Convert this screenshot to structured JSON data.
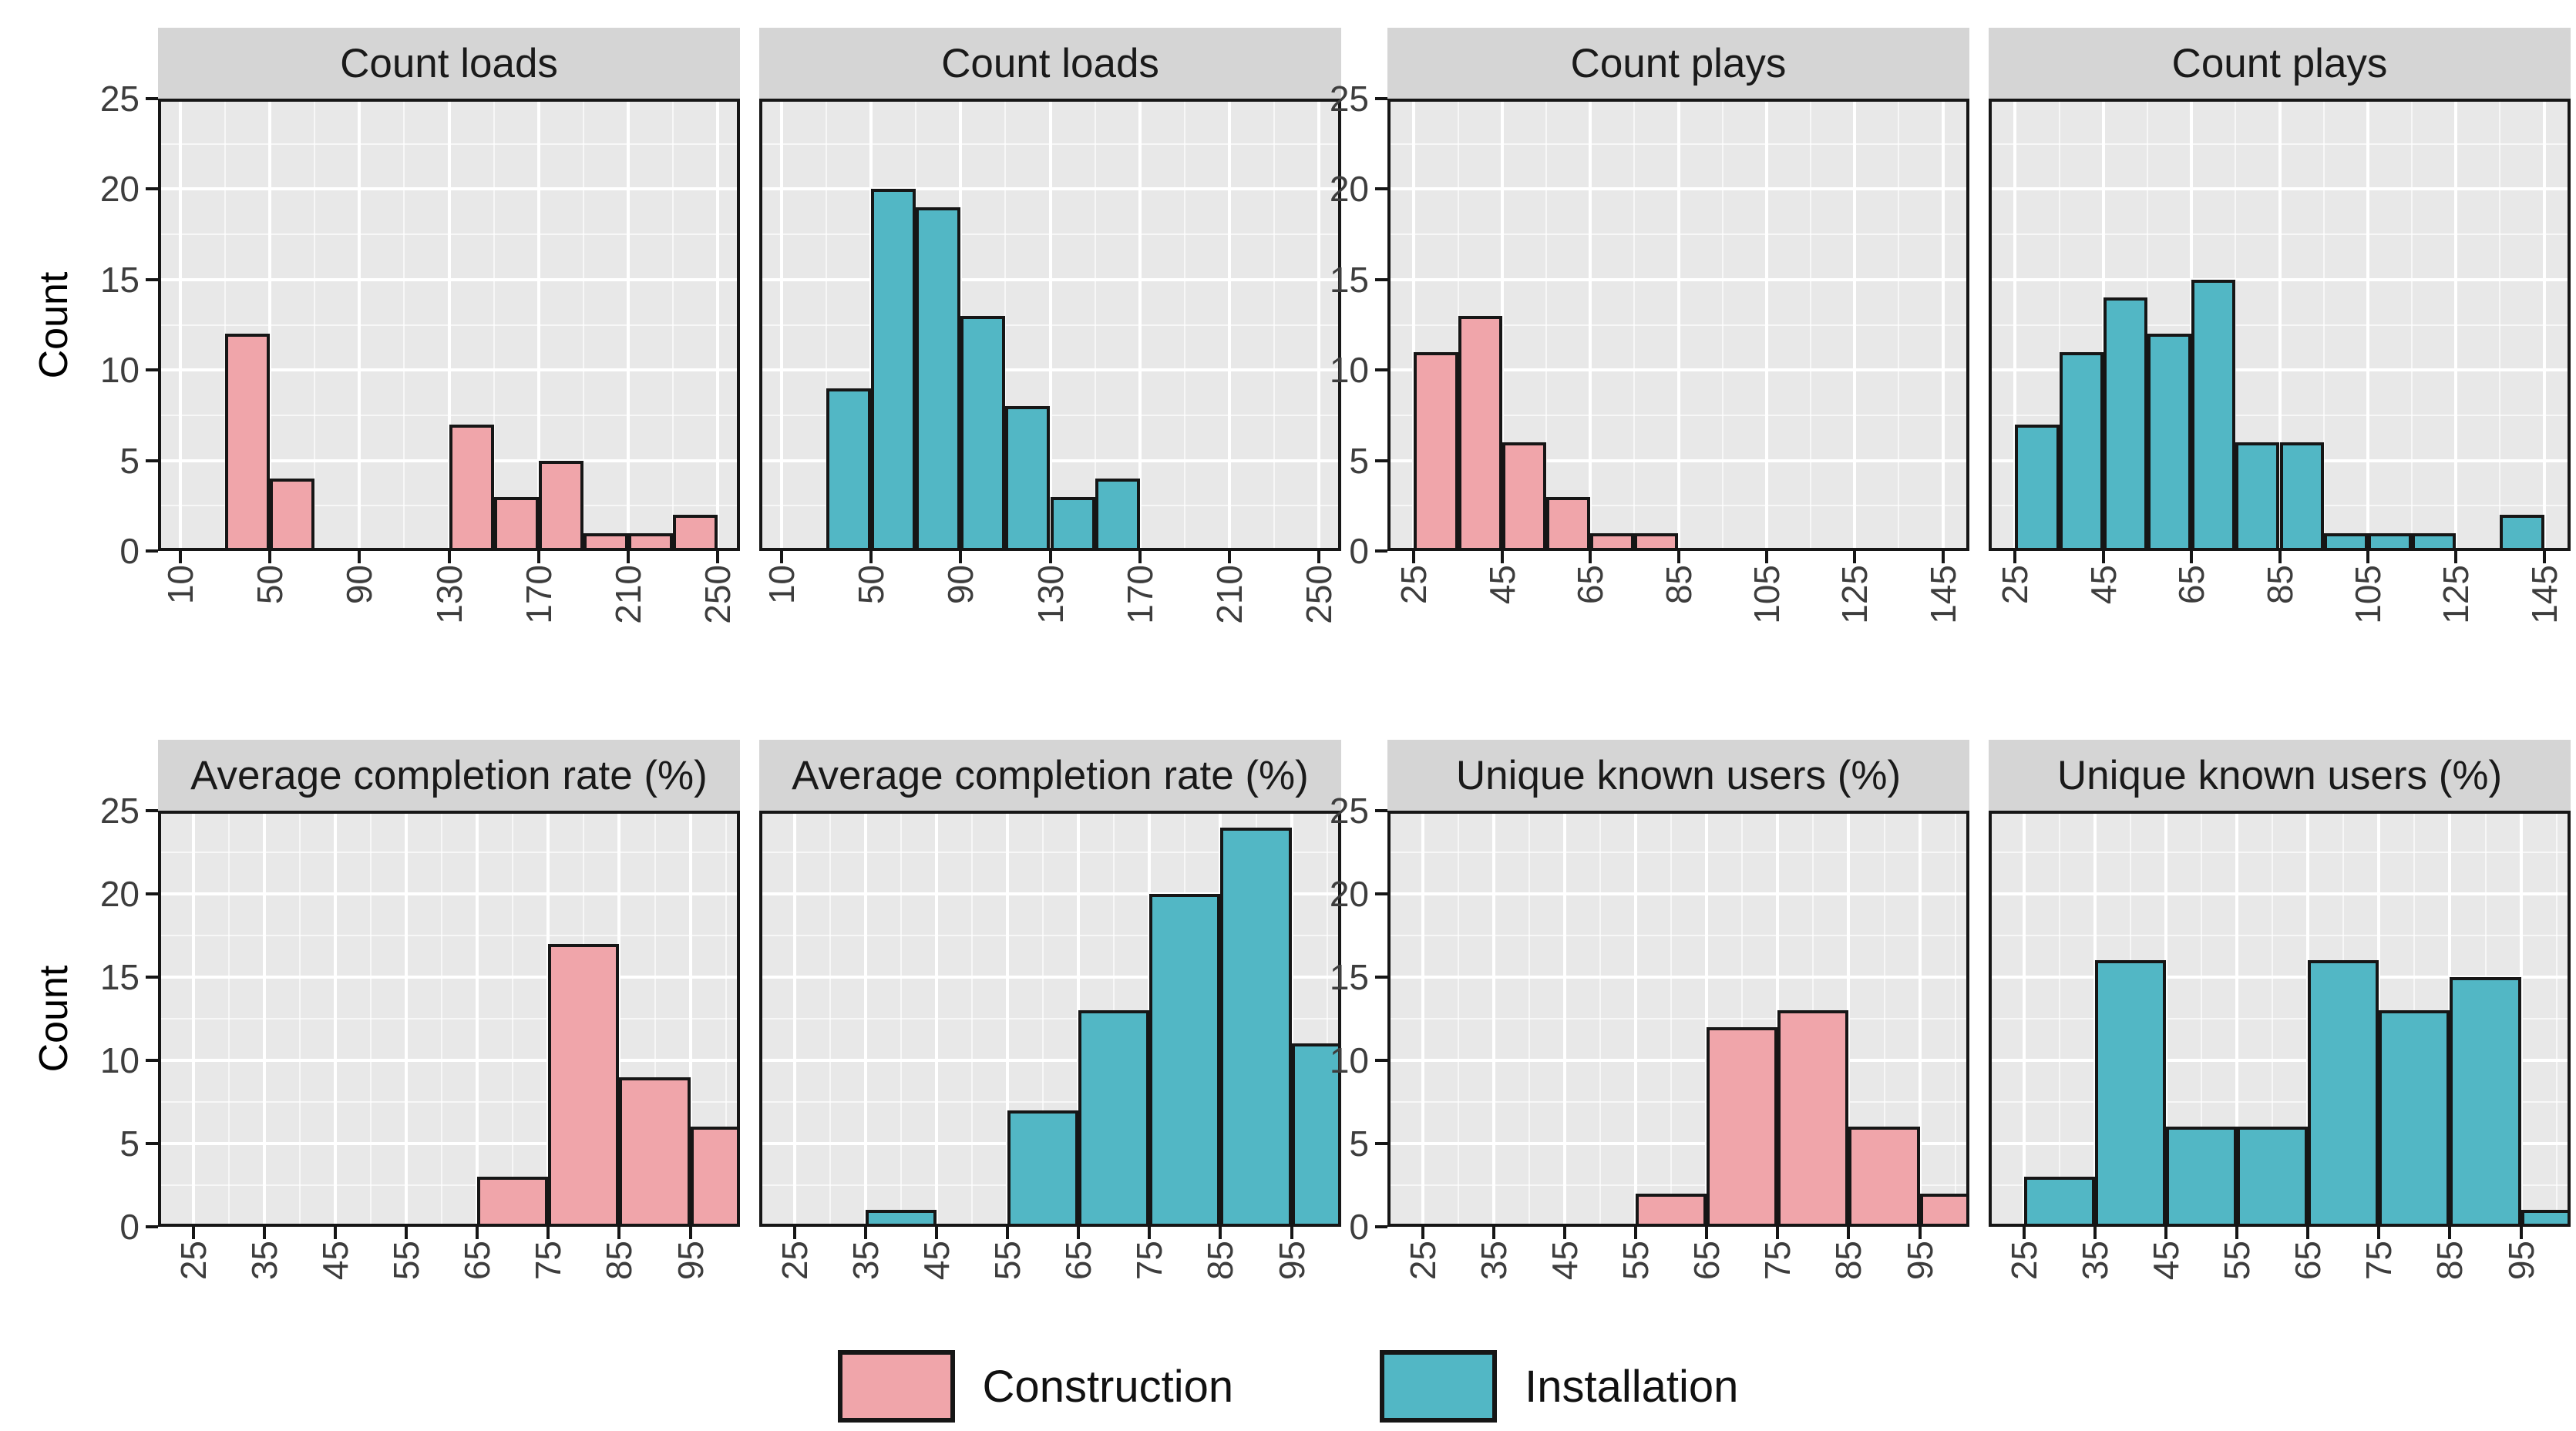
{
  "colors": {
    "construction": "#F0A5AA",
    "installation": "#52B7C5",
    "panel_background": "#E8E8E8",
    "strip_background": "#D5D5D5",
    "grid_major": "#FFFFFF",
    "grid_minor": "#FFFFFF",
    "bar_outline": "#161616",
    "panel_border": "#161616",
    "tick_label_text": "#3D3D3D",
    "title_text": "#000000"
  },
  "chart_data": {
    "type": "histogram",
    "ylabel": "Count",
    "ylim": [
      0,
      25
    ],
    "y_ticks": [
      0,
      5,
      10,
      15,
      20,
      25
    ],
    "y_minor_step": 2.5,
    "grid": "on",
    "facet_rows": 2,
    "facet_cols": 4,
    "legend": {
      "position": "bottom",
      "entries": [
        {
          "label": "Construction",
          "color": "#F0A5AA"
        },
        {
          "label": "Installation",
          "color": "#52B7C5"
        }
      ]
    },
    "panels": [
      {
        "row": 0,
        "col": 0,
        "title": "Count loads",
        "series": "Construction",
        "x_ticks": [
          10,
          50,
          90,
          130,
          170,
          210,
          250
        ],
        "xlim": [
          0,
          260
        ],
        "bin_width": 20,
        "show_y_axis": true,
        "bars": [
          {
            "x": 30,
            "count": 12
          },
          {
            "x": 50,
            "count": 4
          },
          {
            "x": 130,
            "count": 7
          },
          {
            "x": 150,
            "count": 3
          },
          {
            "x": 170,
            "count": 5
          },
          {
            "x": 190,
            "count": 1
          },
          {
            "x": 210,
            "count": 1
          },
          {
            "x": 230,
            "count": 2
          }
        ]
      },
      {
        "row": 0,
        "col": 1,
        "title": "Count loads",
        "series": "Installation",
        "x_ticks": [
          10,
          50,
          90,
          130,
          170,
          210,
          250
        ],
        "xlim": [
          0,
          260
        ],
        "bin_width": 20,
        "show_y_axis": false,
        "bars": [
          {
            "x": 30,
            "count": 9
          },
          {
            "x": 50,
            "count": 20
          },
          {
            "x": 70,
            "count": 19
          },
          {
            "x": 90,
            "count": 13
          },
          {
            "x": 110,
            "count": 8
          },
          {
            "x": 130,
            "count": 3
          },
          {
            "x": 150,
            "count": 4
          }
        ]
      },
      {
        "row": 0,
        "col": 2,
        "title": "Count plays",
        "series": "Construction",
        "x_ticks": [
          25,
          45,
          65,
          85,
          105,
          125,
          145
        ],
        "xlim": [
          19,
          151
        ],
        "bin_width": 10,
        "show_y_axis": true,
        "bars": [
          {
            "x": 25,
            "count": 11
          },
          {
            "x": 35,
            "count": 13
          },
          {
            "x": 45,
            "count": 6
          },
          {
            "x": 55,
            "count": 3
          },
          {
            "x": 65,
            "count": 1
          },
          {
            "x": 75,
            "count": 1
          }
        ]
      },
      {
        "row": 0,
        "col": 3,
        "title": "Count plays",
        "series": "Installation",
        "x_ticks": [
          25,
          45,
          65,
          85,
          105,
          125,
          145
        ],
        "xlim": [
          19,
          151
        ],
        "bin_width": 10,
        "show_y_axis": false,
        "bars": [
          {
            "x": 25,
            "count": 7
          },
          {
            "x": 35,
            "count": 11
          },
          {
            "x": 45,
            "count": 14
          },
          {
            "x": 55,
            "count": 12
          },
          {
            "x": 65,
            "count": 15
          },
          {
            "x": 75,
            "count": 6
          },
          {
            "x": 85,
            "count": 6
          },
          {
            "x": 95,
            "count": 1
          },
          {
            "x": 105,
            "count": 1
          },
          {
            "x": 115,
            "count": 1
          },
          {
            "x": 135,
            "count": 2
          }
        ]
      },
      {
        "row": 1,
        "col": 0,
        "title": "Average completion rate (%)",
        "series": "Construction",
        "x_ticks": [
          25,
          35,
          45,
          55,
          65,
          75,
          85,
          95
        ],
        "xlim": [
          20,
          102
        ],
        "bin_width": 10,
        "show_y_axis": true,
        "bars": [
          {
            "x": 65,
            "count": 3
          },
          {
            "x": 75,
            "count": 17
          },
          {
            "x": 85,
            "count": 9
          },
          {
            "x": 95,
            "count": 6
          }
        ]
      },
      {
        "row": 1,
        "col": 1,
        "title": "Average completion rate (%)",
        "series": "Installation",
        "x_ticks": [
          25,
          35,
          45,
          55,
          65,
          75,
          85,
          95
        ],
        "xlim": [
          20,
          102
        ],
        "bin_width": 10,
        "show_y_axis": false,
        "bars": [
          {
            "x": 35,
            "count": 1
          },
          {
            "x": 55,
            "count": 7
          },
          {
            "x": 65,
            "count": 13
          },
          {
            "x": 75,
            "count": 20
          },
          {
            "x": 85,
            "count": 24
          },
          {
            "x": 95,
            "count": 11
          }
        ]
      },
      {
        "row": 1,
        "col": 2,
        "title": "Unique known users (%)",
        "series": "Construction",
        "x_ticks": [
          25,
          35,
          45,
          55,
          65,
          75,
          85,
          95
        ],
        "xlim": [
          20,
          102
        ],
        "bin_width": 10,
        "show_y_axis": true,
        "bars": [
          {
            "x": 55,
            "count": 2
          },
          {
            "x": 65,
            "count": 12
          },
          {
            "x": 75,
            "count": 13
          },
          {
            "x": 85,
            "count": 6
          },
          {
            "x": 95,
            "count": 2
          }
        ]
      },
      {
        "row": 1,
        "col": 3,
        "title": "Unique known users (%)",
        "series": "Installation",
        "x_ticks": [
          25,
          35,
          45,
          55,
          65,
          75,
          85,
          95
        ],
        "xlim": [
          20,
          102
        ],
        "bin_width": 10,
        "show_y_axis": false,
        "bars": [
          {
            "x": 25,
            "count": 3
          },
          {
            "x": 35,
            "count": 16
          },
          {
            "x": 45,
            "count": 6
          },
          {
            "x": 55,
            "count": 6
          },
          {
            "x": 65,
            "count": 16
          },
          {
            "x": 75,
            "count": 13
          },
          {
            "x": 85,
            "count": 15
          },
          {
            "x": 95,
            "count": 1
          }
        ]
      }
    ]
  }
}
